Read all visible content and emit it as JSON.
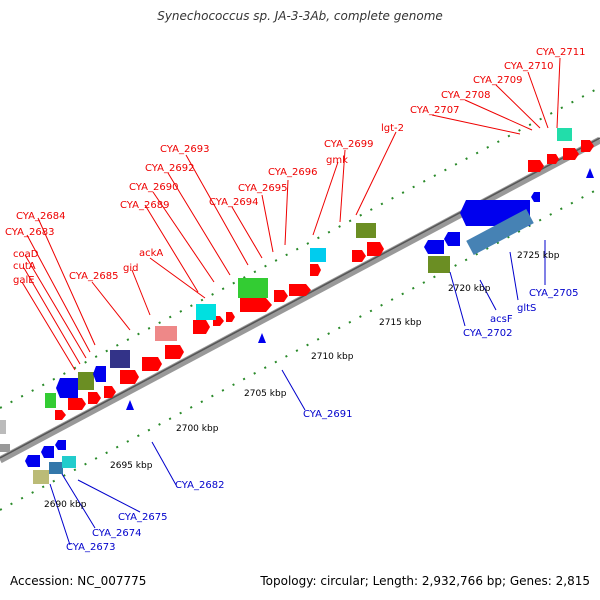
{
  "title": "Synechococcus sp. JA-3-3Ab, complete genome",
  "footer": {
    "accession": "Accession: NC_007775",
    "summary": "Topology: circular; Length: 2,932,766 bp; Genes: 2,815"
  },
  "ticks": [
    "2690 kbp",
    "2695 kbp",
    "2700 kbp",
    "2705 kbp",
    "2710 kbp",
    "2715 kbp",
    "2720 kbp",
    "2725 kbp"
  ],
  "top_labels": [
    "CYA_2711",
    "CYA_2710",
    "CYA_2709",
    "CYA_2708",
    "CYA_2707",
    "lgt-2",
    "CYA_2699",
    "gmk",
    "CYA_2696",
    "CYA_2695",
    "CYA_2694",
    "CYA_2693",
    "CYA_2692",
    "CYA_2690",
    "CYA_2689",
    "ackA",
    "gid",
    "CYA_2685",
    "CYA_2684",
    "CYA_2683",
    "coaD",
    "cutA",
    "galE"
  ],
  "bottom_labels": [
    "CYA_2705",
    "gltS",
    "acsF",
    "CYA_2702",
    "CYA_2691",
    "CYA_2682",
    "CYA_2675",
    "CYA_2674",
    "CYA_2673"
  ],
  "colors": {
    "forward": "#ff0000",
    "reverse": "#0000ff",
    "backbone": "#999999"
  }
}
